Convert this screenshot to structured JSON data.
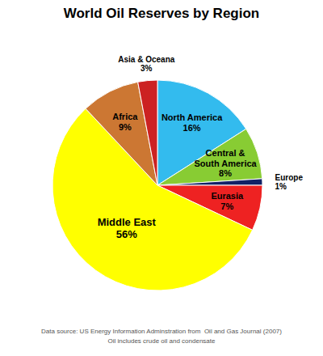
{
  "chart_data": {
    "type": "pie",
    "title": "World Oil Reserves by Region",
    "categories": [
      "North America",
      "Central &\nSouth America",
      "Europe",
      "Eurasia",
      "Middle East",
      "Africa",
      "Asia & Oceana"
    ],
    "values": [
      16,
      8,
      1,
      7,
      56,
      9,
      3
    ],
    "value_labels": [
      "16%",
      "8%",
      "1%",
      "7%",
      "56%",
      "9%",
      "3%"
    ],
    "colors": [
      "#33BBEE",
      "#88CC33",
      "#112266",
      "#EE2222",
      "#FFFF00",
      "#CC7733",
      "#CC2222"
    ],
    "data_labels": true,
    "annotations": [
      "Data source: US Energy Information Adminstration from  Oil and Gas Journal (2007)",
      "Oil includes crude oil and condensate"
    ]
  }
}
